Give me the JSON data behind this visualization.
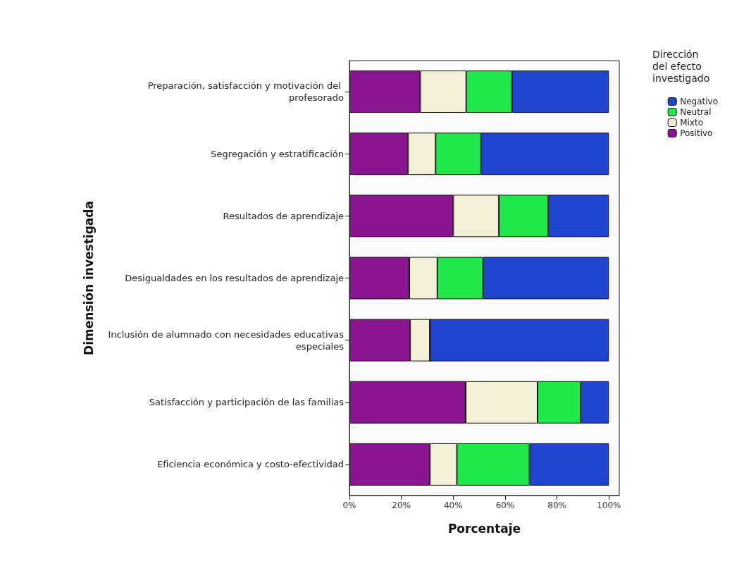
{
  "chart_data": {
    "type": "bar",
    "orientation": "horizontal",
    "stacked": true,
    "xlabel": "Porcentaje",
    "ylabel": "Dimensión investigada",
    "legend_title": "Dirección del efecto investigado",
    "legend": "top right",
    "grid": false,
    "categories": [
      "Preparación, satisfacción y motivación del profesorado",
      "Segregación y estratificación",
      "Resultados de aprendizaje",
      "Desigualdades en los resultados de aprendizaje",
      "Inclusión de alumnado con necesidades educativas especiales",
      "Satisfacción y participación de las familias",
      "Eficiencia económica y costo-efectividad"
    ],
    "xlim": [
      0,
      104
    ],
    "xticks": [
      {
        "value": 0,
        "label": "0%"
      },
      {
        "value": 20,
        "label": "20%"
      },
      {
        "value": 40,
        "label": "40%"
      },
      {
        "value": 60,
        "label": "60%"
      },
      {
        "value": 80,
        "label": "80%"
      },
      {
        "value": 100,
        "label": "100%"
      }
    ],
    "series": [
      {
        "name": "Positivo",
        "color": "#8b1490",
        "values": [
          27.3,
          22.6,
          40,
          23.1,
          23.4,
          44.8,
          31
        ]
      },
      {
        "name": "Mixto",
        "color": "#f3f0d8",
        "values": [
          17.7,
          10.6,
          17.6,
          10.8,
          7.6,
          27.7,
          10.4
        ]
      },
      {
        "name": "Neutral",
        "color": "#1ee84a",
        "values": [
          17.7,
          17.5,
          19,
          17.6,
          0,
          16.6,
          28
        ]
      },
      {
        "name": "Negativo",
        "color": "#1f45d0",
        "values": [
          37.3,
          49.3,
          23.4,
          48.5,
          69,
          10.9,
          30.6
        ]
      }
    ]
  }
}
